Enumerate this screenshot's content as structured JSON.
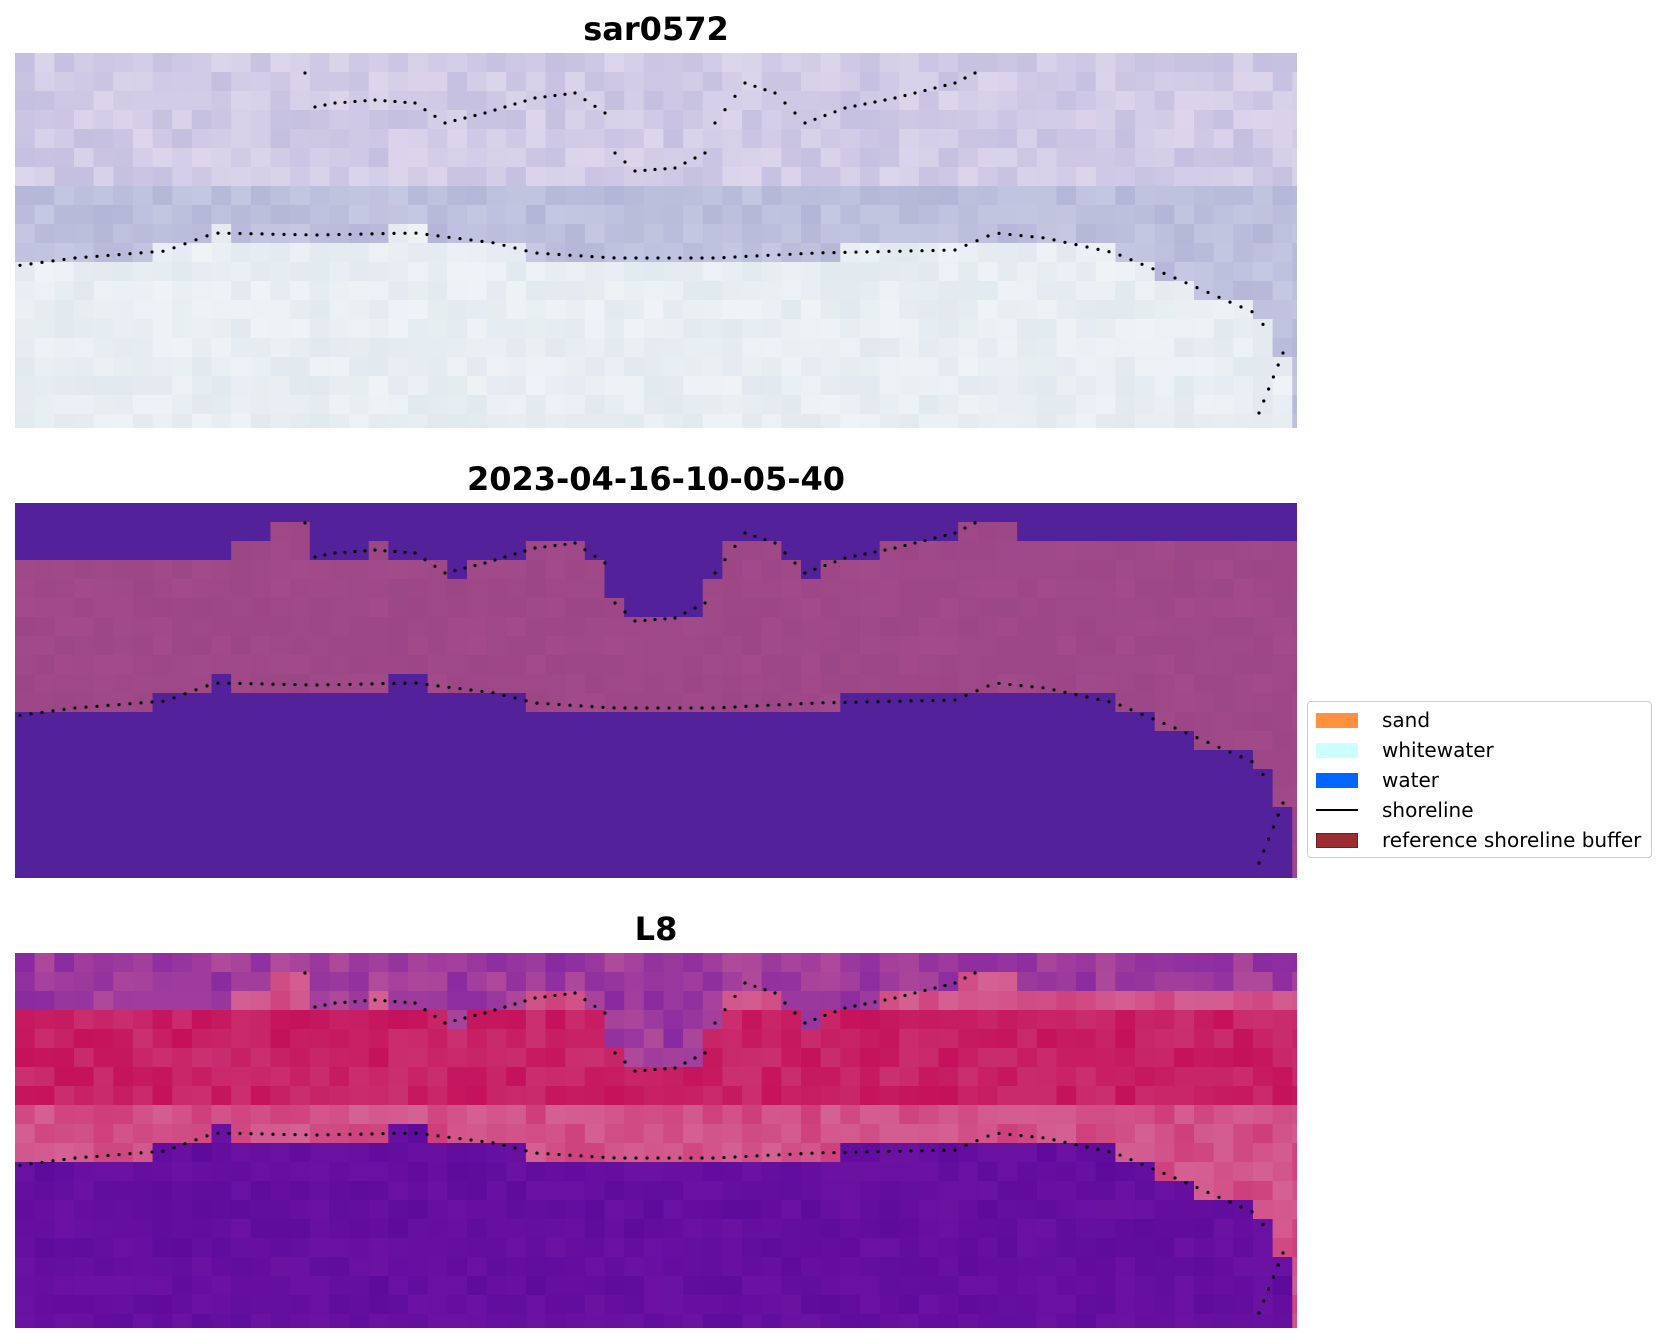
{
  "panels": [
    {
      "title": "sar0572",
      "kind": "rgb"
    },
    {
      "title": "2023-04-16-10-05-40",
      "kind": "classified"
    },
    {
      "title": "L8",
      "kind": "index"
    }
  ],
  "legend": {
    "items": [
      {
        "label": "sand",
        "type": "patch",
        "color": "#ff9040"
      },
      {
        "label": "whitewater",
        "type": "patch",
        "color": "#ccffff"
      },
      {
        "label": "water",
        "type": "patch",
        "color": "#0066ff"
      },
      {
        "label": "shoreline",
        "type": "line",
        "color": "#000000"
      },
      {
        "label": "reference shoreline buffer",
        "type": "patch",
        "color": "#9b2d30",
        "edge": "#6b1f20"
      }
    ]
  },
  "colors": {
    "classified_land": "#a24a8a",
    "classified_water": "#53229a",
    "index_land": "#c4115a",
    "index_water": "#5e0b9c",
    "rgb_land": "#c5bfe0",
    "rgb_water": "#eef3f6"
  }
}
